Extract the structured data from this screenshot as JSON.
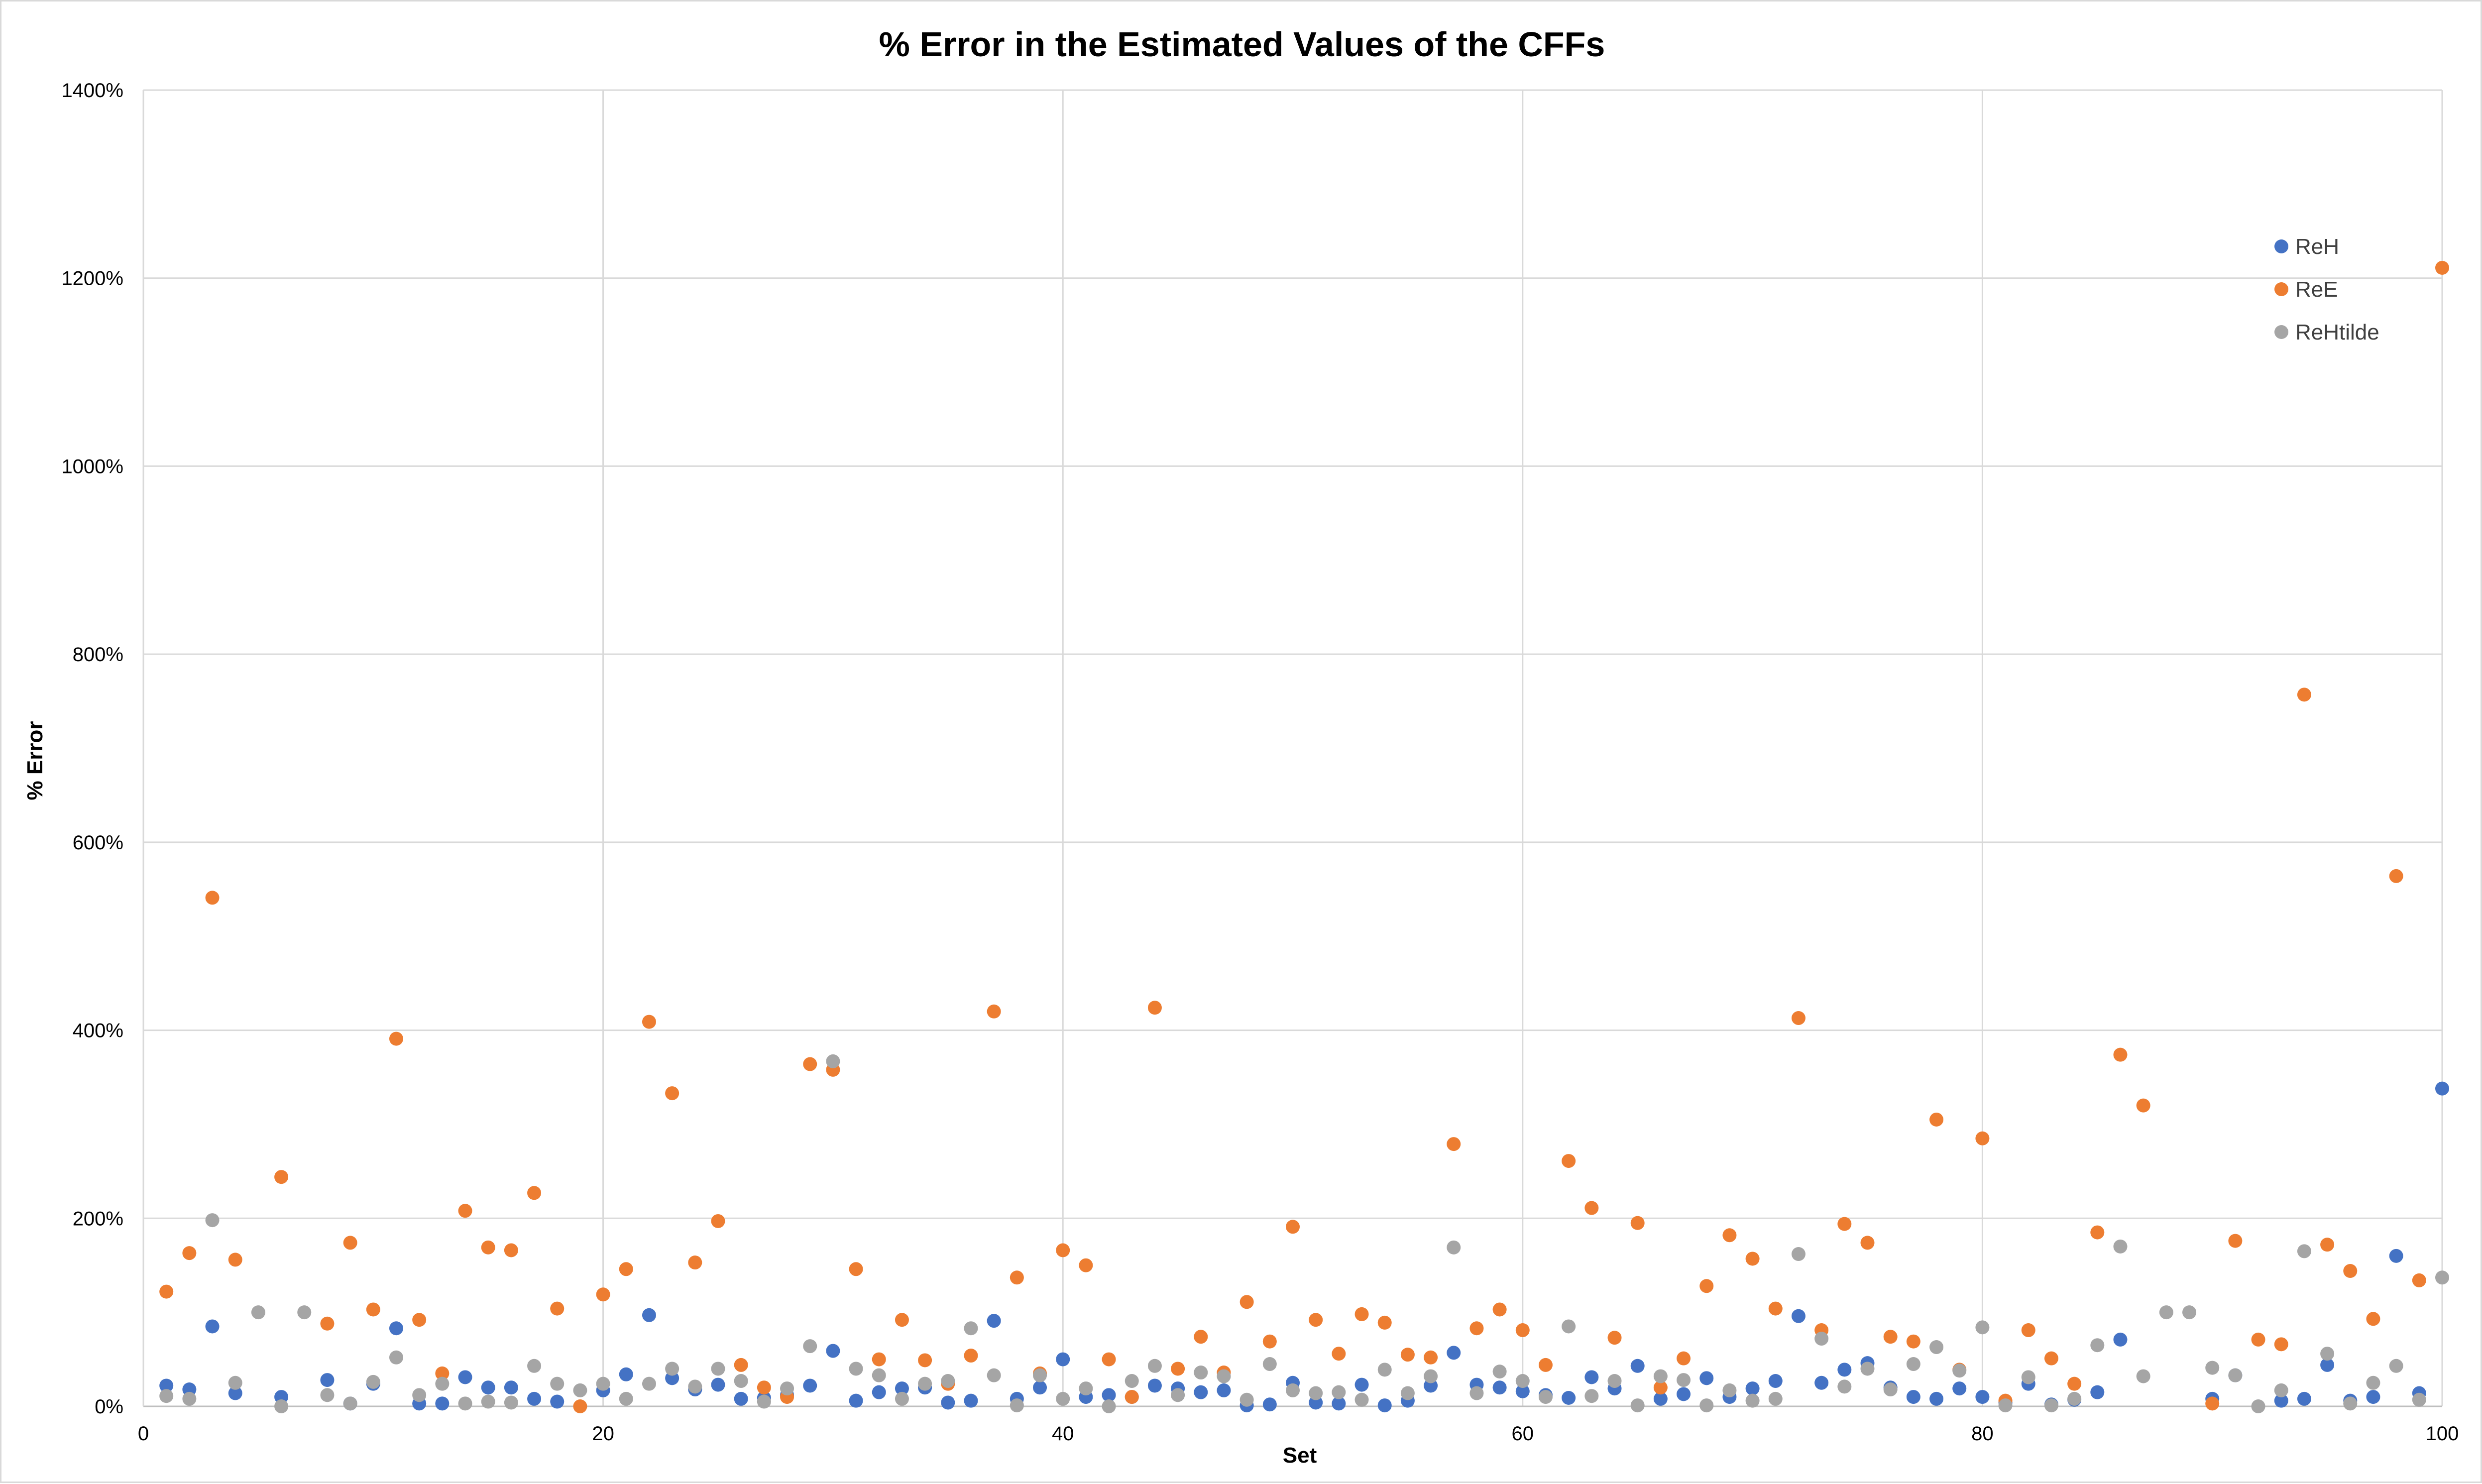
{
  "chart_data": {
    "type": "scatter",
    "title": "% Error in the Estimated Values of the CFFs",
    "xlabel": "Set",
    "ylabel": "% Error",
    "xlim": [
      0,
      100
    ],
    "ylim": [
      0,
      1400
    ],
    "x_ticks": [
      0,
      20,
      40,
      60,
      80,
      100
    ],
    "y_ticks": [
      0,
      200,
      400,
      600,
      800,
      1000,
      1200,
      1400
    ],
    "y_tick_suffix": "%",
    "grid": true,
    "legend_position": "top-right",
    "series": [
      {
        "name": "ReH",
        "color": "#4472C4",
        "points": [
          [
            1,
            22
          ],
          [
            2,
            18
          ],
          [
            3,
            85
          ],
          [
            4,
            14
          ],
          [
            6,
            10
          ],
          [
            8,
            28
          ],
          [
            9,
            3
          ],
          [
            10,
            24
          ],
          [
            11,
            83
          ],
          [
            12,
            3
          ],
          [
            13,
            3
          ],
          [
            14,
            31
          ],
          [
            15,
            20
          ],
          [
            16,
            20
          ],
          [
            17,
            8
          ],
          [
            18,
            5
          ],
          [
            20,
            17
          ],
          [
            21,
            34
          ],
          [
            22,
            97
          ],
          [
            23,
            30
          ],
          [
            24,
            18
          ],
          [
            25,
            23
          ],
          [
            26,
            8
          ],
          [
            27,
            9
          ],
          [
            28,
            12
          ],
          [
            29,
            22
          ],
          [
            30,
            59
          ],
          [
            31,
            6
          ],
          [
            32,
            15
          ],
          [
            33,
            19
          ],
          [
            34,
            20
          ],
          [
            35,
            4
          ],
          [
            36,
            6
          ],
          [
            37,
            91
          ],
          [
            38,
            8
          ],
          [
            39,
            20
          ],
          [
            40,
            50
          ],
          [
            41,
            10
          ],
          [
            42,
            12
          ],
          [
            43,
            10
          ],
          [
            44,
            22
          ],
          [
            45,
            19
          ],
          [
            46,
            15
          ],
          [
            47,
            17
          ],
          [
            48,
            1
          ],
          [
            49,
            2
          ],
          [
            50,
            25
          ],
          [
            51,
            4
          ],
          [
            52,
            3
          ],
          [
            53,
            23
          ],
          [
            54,
            1
          ],
          [
            55,
            6
          ],
          [
            56,
            22
          ],
          [
            57,
            57
          ],
          [
            58,
            23
          ],
          [
            59,
            20
          ],
          [
            60,
            16
          ],
          [
            61,
            12
          ],
          [
            62,
            9
          ],
          [
            63,
            31
          ],
          [
            64,
            19
          ],
          [
            65,
            43
          ],
          [
            66,
            8
          ],
          [
            67,
            13
          ],
          [
            68,
            30
          ],
          [
            69,
            10
          ],
          [
            70,
            19
          ],
          [
            71,
            27
          ],
          [
            72,
            96
          ],
          [
            73,
            25
          ],
          [
            74,
            39
          ],
          [
            75,
            46
          ],
          [
            76,
            20
          ],
          [
            77,
            10
          ],
          [
            78,
            8
          ],
          [
            79,
            19
          ],
          [
            80,
            10
          ],
          [
            81,
            4
          ],
          [
            82,
            24
          ],
          [
            83,
            2
          ],
          [
            84,
            7
          ],
          [
            85,
            15
          ],
          [
            86,
            71
          ],
          [
            90,
            8
          ],
          [
            91,
            33
          ],
          [
            93,
            6
          ],
          [
            94,
            8
          ],
          [
            95,
            44
          ],
          [
            96,
            6
          ],
          [
            97,
            10
          ],
          [
            98,
            160
          ],
          [
            99,
            14
          ],
          [
            100,
            338
          ]
        ]
      },
      {
        "name": "ReE",
        "color": "#ED7D31",
        "points": [
          [
            1,
            122
          ],
          [
            2,
            163
          ],
          [
            3,
            541
          ],
          [
            4,
            156
          ],
          [
            6,
            244
          ],
          [
            8,
            88
          ],
          [
            9,
            174
          ],
          [
            10,
            103
          ],
          [
            11,
            391
          ],
          [
            12,
            92
          ],
          [
            13,
            35
          ],
          [
            14,
            208
          ],
          [
            15,
            169
          ],
          [
            16,
            166
          ],
          [
            17,
            227
          ],
          [
            18,
            104
          ],
          [
            19,
            0
          ],
          [
            20,
            119
          ],
          [
            21,
            146
          ],
          [
            22,
            409
          ],
          [
            23,
            333
          ],
          [
            24,
            153
          ],
          [
            25,
            197
          ],
          [
            26,
            44
          ],
          [
            27,
            20
          ],
          [
            28,
            10
          ],
          [
            29,
            364
          ],
          [
            30,
            358
          ],
          [
            31,
            146
          ],
          [
            32,
            50
          ],
          [
            33,
            92
          ],
          [
            34,
            49
          ],
          [
            35,
            24
          ],
          [
            36,
            54
          ],
          [
            37,
            420
          ],
          [
            38,
            137
          ],
          [
            39,
            35
          ],
          [
            40,
            166
          ],
          [
            41,
            150
          ],
          [
            42,
            50
          ],
          [
            43,
            10
          ],
          [
            44,
            424
          ],
          [
            45,
            40
          ],
          [
            46,
            74
          ],
          [
            47,
            36
          ],
          [
            48,
            111
          ],
          [
            49,
            69
          ],
          [
            50,
            191
          ],
          [
            51,
            92
          ],
          [
            52,
            56
          ],
          [
            53,
            98
          ],
          [
            54,
            89
          ],
          [
            55,
            55
          ],
          [
            56,
            52
          ],
          [
            57,
            279
          ],
          [
            58,
            83
          ],
          [
            59,
            103
          ],
          [
            60,
            81
          ],
          [
            61,
            44
          ],
          [
            62,
            261
          ],
          [
            63,
            211
          ],
          [
            64,
            73
          ],
          [
            65,
            195
          ],
          [
            66,
            20
          ],
          [
            67,
            51
          ],
          [
            68,
            128
          ],
          [
            69,
            182
          ],
          [
            70,
            157
          ],
          [
            71,
            104
          ],
          [
            72,
            413
          ],
          [
            73,
            81
          ],
          [
            74,
            194
          ],
          [
            75,
            174
          ],
          [
            76,
            74
          ],
          [
            77,
            69
          ],
          [
            78,
            305
          ],
          [
            79,
            39
          ],
          [
            80,
            285
          ],
          [
            81,
            6
          ],
          [
            82,
            81
          ],
          [
            83,
            51
          ],
          [
            84,
            24
          ],
          [
            85,
            185
          ],
          [
            86,
            374
          ],
          [
            87,
            320
          ],
          [
            90,
            3
          ],
          [
            91,
            176
          ],
          [
            92,
            71
          ],
          [
            93,
            66
          ],
          [
            94,
            757
          ],
          [
            95,
            172
          ],
          [
            96,
            144
          ],
          [
            97,
            93
          ],
          [
            98,
            564
          ],
          [
            99,
            134
          ],
          [
            100,
            1211
          ]
        ]
      },
      {
        "name": "ReHtilde",
        "color": "#A5A5A5",
        "points": [
          [
            1,
            11
          ],
          [
            2,
            8
          ],
          [
            3,
            198
          ],
          [
            4,
            25
          ],
          [
            5,
            100
          ],
          [
            6,
            0
          ],
          [
            7,
            100
          ],
          [
            8,
            12
          ],
          [
            9,
            3
          ],
          [
            10,
            26
          ],
          [
            11,
            52
          ],
          [
            12,
            12
          ],
          [
            13,
            24
          ],
          [
            14,
            3
          ],
          [
            15,
            5
          ],
          [
            16,
            4
          ],
          [
            17,
            43
          ],
          [
            18,
            24
          ],
          [
            19,
            17
          ],
          [
            20,
            24
          ],
          [
            21,
            8
          ],
          [
            22,
            24
          ],
          [
            23,
            40
          ],
          [
            24,
            21
          ],
          [
            25,
            40
          ],
          [
            26,
            27
          ],
          [
            27,
            5
          ],
          [
            28,
            19
          ],
          [
            29,
            64
          ],
          [
            30,
            367
          ],
          [
            31,
            40
          ],
          [
            32,
            33
          ],
          [
            33,
            8
          ],
          [
            34,
            24
          ],
          [
            35,
            27
          ],
          [
            36,
            83
          ],
          [
            37,
            33
          ],
          [
            38,
            1
          ],
          [
            39,
            33
          ],
          [
            40,
            8
          ],
          [
            41,
            19
          ],
          [
            42,
            0
          ],
          [
            43,
            27
          ],
          [
            44,
            43
          ],
          [
            45,
            12
          ],
          [
            46,
            36
          ],
          [
            47,
            32
          ],
          [
            48,
            7
          ],
          [
            49,
            45
          ],
          [
            50,
            17
          ],
          [
            51,
            14
          ],
          [
            52,
            15
          ],
          [
            53,
            7
          ],
          [
            54,
            39
          ],
          [
            55,
            14
          ],
          [
            56,
            32
          ],
          [
            57,
            169
          ],
          [
            58,
            14
          ],
          [
            59,
            37
          ],
          [
            60,
            27
          ],
          [
            61,
            10
          ],
          [
            62,
            85
          ],
          [
            63,
            11
          ],
          [
            64,
            27
          ],
          [
            65,
            1
          ],
          [
            66,
            32
          ],
          [
            67,
            28
          ],
          [
            68,
            1
          ],
          [
            69,
            17
          ],
          [
            70,
            6
          ],
          [
            71,
            8
          ],
          [
            72,
            162
          ],
          [
            73,
            72
          ],
          [
            74,
            21
          ],
          [
            75,
            40
          ],
          [
            76,
            18
          ],
          [
            77,
            45
          ],
          [
            78,
            63
          ],
          [
            79,
            38
          ],
          [
            80,
            84
          ],
          [
            81,
            1
          ],
          [
            82,
            31
          ],
          [
            83,
            1
          ],
          [
            84,
            8
          ],
          [
            85,
            65
          ],
          [
            86,
            170
          ],
          [
            87,
            32
          ],
          [
            88,
            100
          ],
          [
            89,
            100
          ],
          [
            90,
            41
          ],
          [
            91,
            33
          ],
          [
            92,
            0
          ],
          [
            93,
            17
          ],
          [
            94,
            165
          ],
          [
            95,
            56
          ],
          [
            96,
            3
          ],
          [
            97,
            25
          ],
          [
            98,
            43
          ],
          [
            99,
            7
          ],
          [
            100,
            137
          ]
        ]
      }
    ]
  }
}
